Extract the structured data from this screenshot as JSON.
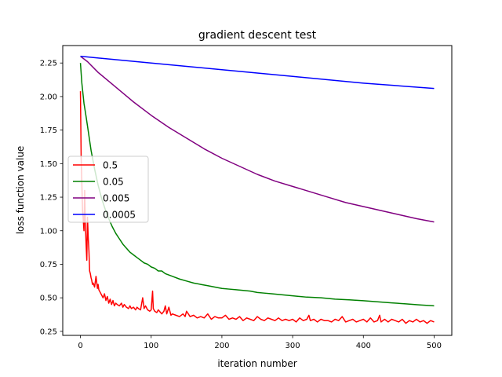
{
  "chart_data": {
    "type": "line",
    "title": "gradient descent test",
    "xlabel": "iteration number",
    "ylabel": "loss function value",
    "xlim": [
      -25,
      525
    ],
    "ylim": [
      0.22,
      2.38
    ],
    "xticks": [
      0,
      100,
      200,
      300,
      400,
      500
    ],
    "xtick_labels": [
      "0",
      "100",
      "200",
      "300",
      "400",
      "500"
    ],
    "yticks": [
      0.25,
      0.5,
      0.75,
      1.0,
      1.25,
      1.5,
      1.75,
      2.0,
      2.25
    ],
    "ytick_labels": [
      "0.25",
      "0.50",
      "0.75",
      "1.00",
      "1.25",
      "1.50",
      "1.75",
      "2.00",
      "2.25"
    ],
    "grid": false,
    "legend_position": "center-left",
    "series": [
      {
        "name": "0.5",
        "color": "#ff0000",
        "x": [
          0,
          1,
          2,
          3,
          4,
          5,
          6,
          7,
          8,
          9,
          10,
          11,
          12,
          13,
          14,
          15,
          16,
          17,
          18,
          20,
          22,
          24,
          25,
          26,
          28,
          30,
          32,
          34,
          36,
          38,
          40,
          42,
          44,
          46,
          48,
          50,
          52,
          55,
          58,
          60,
          62,
          65,
          68,
          70,
          72,
          75,
          78,
          80,
          82,
          85,
          88,
          90,
          92,
          95,
          98,
          100,
          102,
          103,
          105,
          108,
          110,
          115,
          118,
          120,
          122,
          125,
          128,
          130,
          135,
          140,
          145,
          148,
          150,
          155,
          160,
          165,
          170,
          175,
          180,
          185,
          190,
          195,
          200,
          205,
          210,
          215,
          220,
          225,
          230,
          235,
          240,
          245,
          250,
          255,
          260,
          265,
          270,
          275,
          280,
          285,
          290,
          295,
          300,
          305,
          310,
          315,
          320,
          323,
          325,
          330,
          335,
          340,
          345,
          350,
          355,
          360,
          365,
          370,
          375,
          380,
          385,
          390,
          395,
          400,
          405,
          410,
          415,
          420,
          423,
          425,
          430,
          435,
          440,
          445,
          450,
          455,
          460,
          465,
          470,
          475,
          480,
          485,
          490,
          495,
          500
        ],
        "y": [
          2.04,
          1.55,
          1.35,
          1.15,
          1.08,
          1.0,
          1.3,
          1.05,
          0.9,
          0.78,
          1.1,
          0.95,
          0.85,
          0.7,
          0.68,
          0.65,
          0.63,
          0.6,
          0.61,
          0.58,
          0.66,
          0.57,
          0.6,
          0.56,
          0.54,
          0.52,
          0.5,
          0.53,
          0.48,
          0.51,
          0.46,
          0.49,
          0.45,
          0.48,
          0.44,
          0.46,
          0.45,
          0.44,
          0.46,
          0.43,
          0.45,
          0.43,
          0.42,
          0.44,
          0.42,
          0.43,
          0.41,
          0.43,
          0.42,
          0.41,
          0.5,
          0.42,
          0.44,
          0.41,
          0.4,
          0.41,
          0.55,
          0.42,
          0.4,
          0.39,
          0.41,
          0.38,
          0.4,
          0.44,
          0.38,
          0.43,
          0.37,
          0.38,
          0.37,
          0.36,
          0.38,
          0.36,
          0.4,
          0.36,
          0.37,
          0.35,
          0.36,
          0.35,
          0.38,
          0.34,
          0.36,
          0.35,
          0.35,
          0.37,
          0.34,
          0.35,
          0.34,
          0.36,
          0.33,
          0.35,
          0.34,
          0.33,
          0.36,
          0.34,
          0.33,
          0.35,
          0.34,
          0.33,
          0.35,
          0.33,
          0.34,
          0.33,
          0.34,
          0.32,
          0.35,
          0.33,
          0.34,
          0.37,
          0.33,
          0.34,
          0.32,
          0.34,
          0.33,
          0.33,
          0.32,
          0.34,
          0.33,
          0.36,
          0.32,
          0.33,
          0.34,
          0.32,
          0.33,
          0.34,
          0.32,
          0.35,
          0.32,
          0.33,
          0.37,
          0.32,
          0.34,
          0.32,
          0.34,
          0.33,
          0.32,
          0.34,
          0.31,
          0.33,
          0.32,
          0.34,
          0.32,
          0.33,
          0.31,
          0.33,
          0.32
        ]
      },
      {
        "name": "0.05",
        "color": "#008000",
        "x": [
          0,
          2,
          5,
          8,
          10,
          15,
          20,
          25,
          30,
          35,
          40,
          45,
          50,
          55,
          60,
          65,
          70,
          75,
          80,
          85,
          90,
          95,
          100,
          105,
          110,
          115,
          120,
          130,
          140,
          150,
          160,
          170,
          180,
          190,
          200,
          210,
          220,
          230,
          240,
          250,
          260,
          270,
          280,
          290,
          300,
          320,
          340,
          360,
          380,
          400,
          420,
          440,
          460,
          480,
          500
        ],
        "y": [
          2.25,
          2.1,
          1.95,
          1.85,
          1.78,
          1.6,
          1.46,
          1.34,
          1.24,
          1.16,
          1.09,
          1.03,
          0.98,
          0.94,
          0.9,
          0.87,
          0.84,
          0.82,
          0.8,
          0.78,
          0.76,
          0.75,
          0.73,
          0.72,
          0.7,
          0.7,
          0.68,
          0.66,
          0.64,
          0.625,
          0.61,
          0.6,
          0.59,
          0.58,
          0.57,
          0.565,
          0.56,
          0.555,
          0.55,
          0.54,
          0.535,
          0.53,
          0.525,
          0.52,
          0.515,
          0.505,
          0.5,
          0.49,
          0.485,
          0.478,
          0.47,
          0.462,
          0.455,
          0.447,
          0.44
        ]
      },
      {
        "name": "0.005",
        "color": "#800080",
        "x": [
          0,
          10,
          25,
          50,
          75,
          100,
          125,
          150,
          175,
          200,
          225,
          250,
          275,
          300,
          325,
          350,
          375,
          400,
          425,
          450,
          475,
          500
        ],
        "y": [
          2.3,
          2.26,
          2.18,
          2.07,
          1.96,
          1.86,
          1.77,
          1.69,
          1.61,
          1.54,
          1.48,
          1.42,
          1.37,
          1.33,
          1.29,
          1.25,
          1.21,
          1.18,
          1.15,
          1.12,
          1.09,
          1.065
        ]
      },
      {
        "name": "0.0005",
        "color": "#0000ff",
        "x": [
          0,
          100,
          200,
          300,
          400,
          500
        ],
        "y": [
          2.3,
          2.25,
          2.2,
          2.15,
          2.1,
          2.06
        ]
      }
    ]
  }
}
